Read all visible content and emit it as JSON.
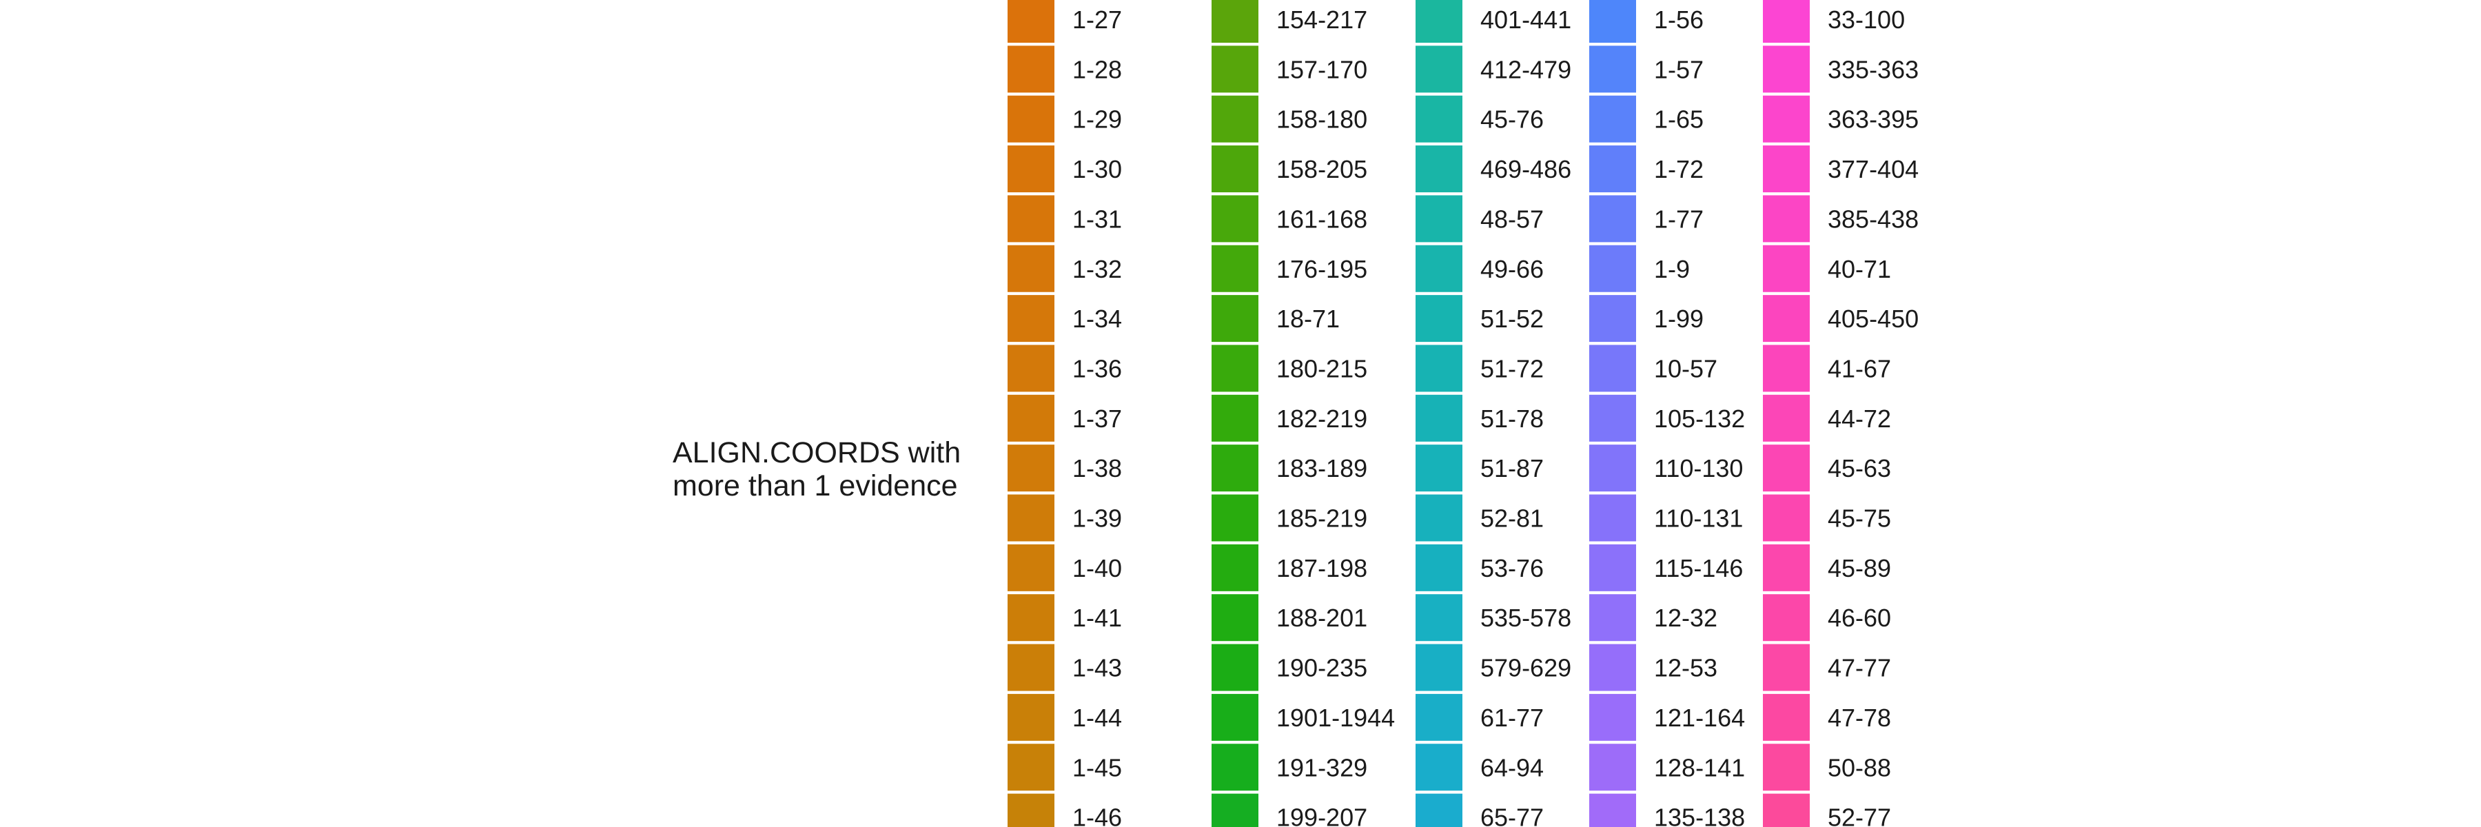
{
  "chart_data": {
    "type": "legend",
    "title": "ALIGN.COORDS with more than 1 evidence",
    "title_lines": [
      "ALIGN.COORDS with",
      "more than 1 evidence"
    ],
    "columns": [
      {
        "entries": [
          {
            "label": "1-27",
            "color": "#DB720B"
          },
          {
            "label": "1-28",
            "color": "#DA730B"
          },
          {
            "label": "1-29",
            "color": "#D9740A"
          },
          {
            "label": "1-30",
            "color": "#D8750A"
          },
          {
            "label": "1-31",
            "color": "#D7760A"
          },
          {
            "label": "1-32",
            "color": "#D6770A"
          },
          {
            "label": "1-34",
            "color": "#D5780A"
          },
          {
            "label": "1-36",
            "color": "#D3790A"
          },
          {
            "label": "1-37",
            "color": "#D27A09"
          },
          {
            "label": "1-38",
            "color": "#D17B09"
          },
          {
            "label": "1-39",
            "color": "#CF7C09"
          },
          {
            "label": "1-40",
            "color": "#CE7D09"
          },
          {
            "label": "1-41",
            "color": "#CC7E08"
          },
          {
            "label": "1-43",
            "color": "#CB7F08"
          },
          {
            "label": "1-44",
            "color": "#C98008"
          },
          {
            "label": "1-45",
            "color": "#C88108"
          },
          {
            "label": "1-46",
            "color": "#C68208"
          }
        ]
      },
      {
        "entries": [
          {
            "label": "154-217",
            "color": "#5BA50B"
          },
          {
            "label": "157-170",
            "color": "#57A60B"
          },
          {
            "label": "158-180",
            "color": "#52A70B"
          },
          {
            "label": "158-205",
            "color": "#4DA70B"
          },
          {
            "label": "161-168",
            "color": "#48A80B"
          },
          {
            "label": "176-195",
            "color": "#43A90B"
          },
          {
            "label": "18-71",
            "color": "#3EA90B"
          },
          {
            "label": "180-215",
            "color": "#39AA0C"
          },
          {
            "label": "182-219",
            "color": "#33AB0C"
          },
          {
            "label": "183-189",
            "color": "#2EAB0D"
          },
          {
            "label": "185-219",
            "color": "#29AC0E"
          },
          {
            "label": "187-198",
            "color": "#24AC10"
          },
          {
            "label": "188-201",
            "color": "#1FAD12"
          },
          {
            "label": "190-235",
            "color": "#1BAD15"
          },
          {
            "label": "1901-1944",
            "color": "#18AE19"
          },
          {
            "label": "191-329",
            "color": "#16AE1D"
          },
          {
            "label": "199-207",
            "color": "#15AE22"
          }
        ]
      },
      {
        "entries": [
          {
            "label": "401-441",
            "color": "#1BB79E"
          },
          {
            "label": "412-479",
            "color": "#1AB6A1"
          },
          {
            "label": "45-76",
            "color": "#19B6A4"
          },
          {
            "label": "469-486",
            "color": "#19B5A7"
          },
          {
            "label": "48-57",
            "color": "#18B5AA"
          },
          {
            "label": "49-66",
            "color": "#18B4AD"
          },
          {
            "label": "51-52",
            "color": "#17B4B0"
          },
          {
            "label": "51-72",
            "color": "#17B3B3"
          },
          {
            "label": "51-78",
            "color": "#17B2B6"
          },
          {
            "label": "51-87",
            "color": "#17B2B9"
          },
          {
            "label": "52-81",
            "color": "#17B1BC"
          },
          {
            "label": "53-76",
            "color": "#17B0BF"
          },
          {
            "label": "535-578",
            "color": "#18B0C2"
          },
          {
            "label": "579-629",
            "color": "#18AFC5"
          },
          {
            "label": "61-77",
            "color": "#19AEC8"
          },
          {
            "label": "64-94",
            "color": "#19ADCB"
          },
          {
            "label": "65-77",
            "color": "#1AACCE"
          }
        ]
      },
      {
        "entries": [
          {
            "label": "1-56",
            "color": "#4E86FA"
          },
          {
            "label": "1-57",
            "color": "#5484FA"
          },
          {
            "label": "1-65",
            "color": "#5A82FA"
          },
          {
            "label": "1-72",
            "color": "#607FFA"
          },
          {
            "label": "1-77",
            "color": "#667DFA"
          },
          {
            "label": "1-9",
            "color": "#6C7BFA"
          },
          {
            "label": "1-99",
            "color": "#7279FA"
          },
          {
            "label": "10-57",
            "color": "#7777FA"
          },
          {
            "label": "105-132",
            "color": "#7C76FA"
          },
          {
            "label": "110-130",
            "color": "#8174FA"
          },
          {
            "label": "110-131",
            "color": "#8672FA"
          },
          {
            "label": "115-146",
            "color": "#8B71FA"
          },
          {
            "label": "12-32",
            "color": "#9070FA"
          },
          {
            "label": "12-53",
            "color": "#956EFA"
          },
          {
            "label": "121-164",
            "color": "#996DFA"
          },
          {
            "label": "128-141",
            "color": "#9D6CF9"
          },
          {
            "label": "135-138",
            "color": "#A16BF9"
          }
        ]
      },
      {
        "entries": [
          {
            "label": "33-100",
            "color": "#FC45D3"
          },
          {
            "label": "335-363",
            "color": "#FC45D0"
          },
          {
            "label": "363-395",
            "color": "#FC45CC"
          },
          {
            "label": "377-404",
            "color": "#FC45C9"
          },
          {
            "label": "385-438",
            "color": "#FC45C5"
          },
          {
            "label": "40-71",
            "color": "#FC45C2"
          },
          {
            "label": "405-450",
            "color": "#FC45BE"
          },
          {
            "label": "41-67",
            "color": "#FC45BB"
          },
          {
            "label": "44-72",
            "color": "#FC46B7"
          },
          {
            "label": "45-63",
            "color": "#FC46B4"
          },
          {
            "label": "45-75",
            "color": "#FC46B0"
          },
          {
            "label": "45-89",
            "color": "#FC47AD"
          },
          {
            "label": "46-60",
            "color": "#FC47A9"
          },
          {
            "label": "47-77",
            "color": "#FC48A6"
          },
          {
            "label": "47-78",
            "color": "#FC48A2"
          },
          {
            "label": "50-88",
            "color": "#FC499F"
          },
          {
            "label": "52-77",
            "color": "#FC4A9B"
          }
        ]
      }
    ]
  }
}
